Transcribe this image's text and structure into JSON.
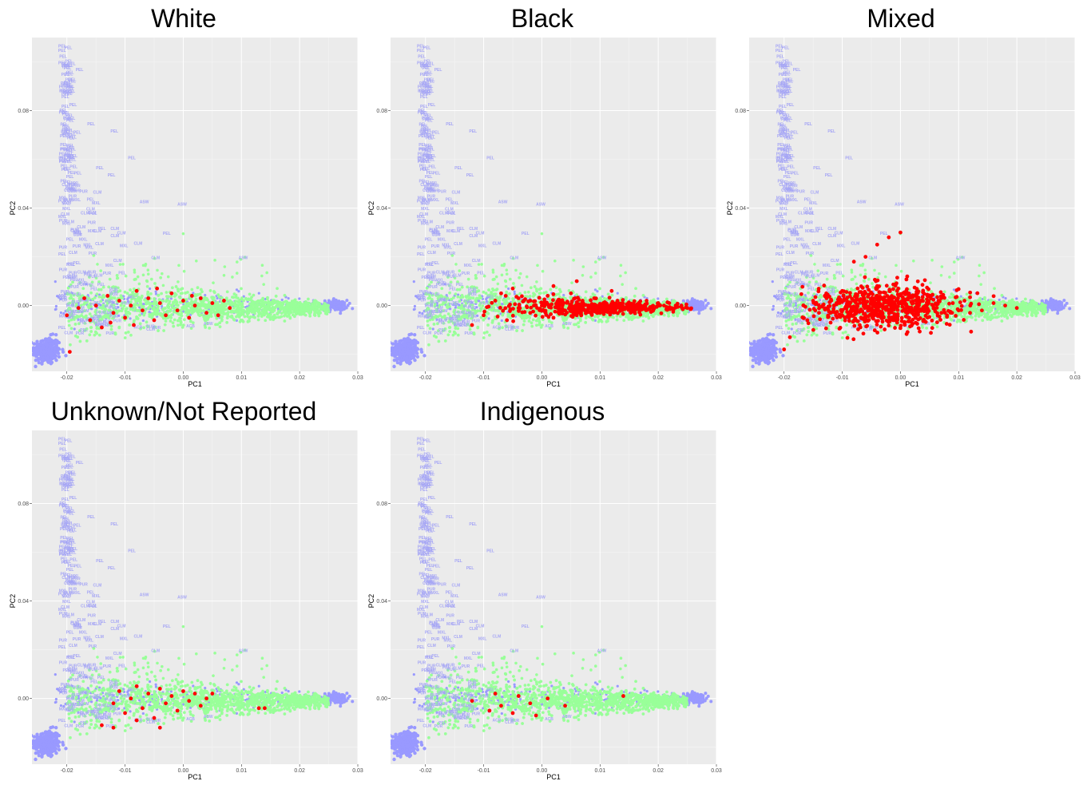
{
  "chart_data": [
    {
      "type": "scatter",
      "title": "White",
      "xlabel": "PC1",
      "ylabel": "PC2",
      "xlim": [
        -0.026,
        0.03
      ],
      "ylim": [
        -0.027,
        0.11
      ],
      "xticks": [
        "-0.02",
        "-0.01",
        "0.00",
        "0.01",
        "0.02",
        "0.03"
      ],
      "yticks": [
        "0.00",
        "0.04",
        "0.08"
      ],
      "grid": true,
      "colors": {
        "reference": "#9999ff",
        "cohort": "#99ff99",
        "highlight": "#ff0000",
        "panel_bg": "#ebebeb"
      },
      "reference_labels": [
        "PEL",
        "CLM",
        "MXL",
        "PUR",
        "ASW",
        "ACB"
      ],
      "highlight_points": [
        [
          -0.02,
          -0.004
        ],
        [
          -0.018,
          -0.001
        ],
        [
          -0.017,
          0.003
        ],
        [
          -0.016,
          -0.006
        ],
        [
          -0.015,
          0.0
        ],
        [
          -0.014,
          -0.009
        ],
        [
          -0.013,
          0.004
        ],
        [
          -0.012,
          -0.003
        ],
        [
          -0.011,
          0.002
        ],
        [
          -0.01,
          -0.005
        ],
        [
          -0.009,
          0.0
        ],
        [
          -0.008,
          0.006
        ],
        [
          -0.007,
          -0.002
        ],
        [
          -0.006,
          0.003
        ],
        [
          -0.005,
          -0.006
        ],
        [
          -0.004,
          0.001
        ],
        [
          -0.003,
          -0.004
        ],
        [
          -0.002,
          0.005
        ],
        [
          -0.001,
          -0.002
        ],
        [
          0.0,
          0.002
        ],
        [
          0.001,
          -0.005
        ],
        [
          0.002,
          0.0
        ],
        [
          0.003,
          0.003
        ],
        [
          0.004,
          -0.003
        ],
        [
          0.005,
          0.001
        ],
        [
          0.006,
          -0.004
        ],
        [
          0.007,
          0.002
        ],
        [
          0.008,
          -0.001
        ],
        [
          -0.0125,
          -0.007
        ],
        [
          -0.0085,
          -0.008
        ],
        [
          -0.0045,
          0.007
        ],
        [
          0.0015,
          0.004
        ],
        [
          -0.0195,
          -0.019
        ]
      ]
    },
    {
      "type": "scatter",
      "title": "Black",
      "xlabel": "PC1",
      "ylabel": "PC2",
      "xlim": [
        -0.026,
        0.03
      ],
      "ylim": [
        -0.027,
        0.11
      ],
      "xticks": [
        "-0.02",
        "-0.01",
        "0.00",
        "0.01",
        "0.02",
        "0.03"
      ],
      "yticks": [
        "0.00",
        "0.04",
        "0.08"
      ],
      "grid": true,
      "colors": {
        "reference": "#9999ff",
        "cohort": "#99ff99",
        "highlight": "#ff0000",
        "panel_bg": "#ebebeb"
      },
      "reference_labels": [
        "PEL",
        "CLM",
        "MXL",
        "PUR",
        "ASW",
        "ACB"
      ],
      "highlight_points": [
        [
          -0.01,
          -0.004
        ],
        [
          -0.008,
          0.002
        ],
        [
          -0.006,
          -0.006
        ],
        [
          -0.004,
          0.003
        ],
        [
          -0.002,
          -0.003
        ],
        [
          0.0,
          0.0
        ],
        [
          0.001,
          0.004
        ],
        [
          0.002,
          -0.005
        ],
        [
          0.003,
          0.001
        ],
        [
          0.004,
          -0.002
        ],
        [
          0.005,
          0.005
        ],
        [
          0.006,
          -0.004
        ],
        [
          0.007,
          0.002
        ],
        [
          0.008,
          -0.001
        ],
        [
          0.009,
          0.003
        ],
        [
          0.01,
          -0.003
        ],
        [
          0.011,
          0.001
        ],
        [
          0.012,
          -0.002
        ],
        [
          0.013,
          0.002
        ],
        [
          0.014,
          -0.001
        ],
        [
          0.015,
          0.001
        ],
        [
          0.016,
          -0.002
        ],
        [
          0.017,
          0.0
        ],
        [
          0.018,
          0.002
        ],
        [
          0.019,
          -0.001
        ],
        [
          0.02,
          0.001
        ],
        [
          0.021,
          0.0
        ],
        [
          0.022,
          -0.001
        ],
        [
          0.023,
          0.0
        ],
        [
          0.024,
          0.0
        ],
        [
          0.025,
          -0.001
        ],
        [
          -0.005,
          0.007
        ],
        [
          0.002,
          0.008
        ],
        [
          0.006,
          0.01
        ],
        [
          0.012,
          0.006
        ],
        [
          -0.012,
          -0.008
        ],
        [
          -0.007,
          0.005
        ]
      ]
    },
    {
      "type": "scatter",
      "title": "Mixed",
      "xlabel": "PC1",
      "ylabel": "PC2",
      "xlim": [
        -0.026,
        0.03
      ],
      "ylim": [
        -0.027,
        0.11
      ],
      "xticks": [
        "-0.02",
        "-0.01",
        "0.00",
        "0.01",
        "0.02",
        "0.03"
      ],
      "yticks": [
        "0.00",
        "0.04",
        "0.08"
      ],
      "grid": true,
      "colors": {
        "reference": "#9999ff",
        "cohort": "#99ff99",
        "highlight": "#ff0000",
        "panel_bg": "#ebebeb"
      },
      "reference_labels": [
        "PEL",
        "CLM",
        "MXL",
        "PUR",
        "ASW",
        "ACB"
      ],
      "highlight_points": [
        [
          -0.016,
          -0.006
        ],
        [
          -0.015,
          0.002
        ],
        [
          -0.014,
          -0.003
        ],
        [
          -0.013,
          0.004
        ],
        [
          -0.012,
          -0.007
        ],
        [
          -0.011,
          0.001
        ],
        [
          -0.01,
          0.006
        ],
        [
          -0.009,
          -0.004
        ],
        [
          -0.008,
          0.002
        ],
        [
          -0.007,
          -0.008
        ],
        [
          -0.006,
          0.005
        ],
        [
          -0.005,
          -0.002
        ],
        [
          -0.004,
          0.008
        ],
        [
          -0.003,
          -0.005
        ],
        [
          -0.002,
          0.003
        ],
        [
          -0.001,
          -0.006
        ],
        [
          0.0,
          0.001
        ],
        [
          0.001,
          0.006
        ],
        [
          0.002,
          -0.003
        ],
        [
          0.003,
          0.002
        ],
        [
          0.004,
          -0.006
        ],
        [
          0.005,
          0.004
        ],
        [
          0.006,
          -0.001
        ],
        [
          0.007,
          0.003
        ],
        [
          0.008,
          -0.004
        ],
        [
          0.009,
          0.001
        ],
        [
          0.01,
          -0.002
        ],
        [
          0.011,
          0.002
        ],
        [
          0.012,
          0.0
        ],
        [
          0.014,
          -0.002
        ],
        [
          0.016,
          0.001
        ],
        [
          0.018,
          0.0
        ],
        [
          -0.004,
          0.025
        ],
        [
          -0.002,
          0.028
        ],
        [
          0.0,
          0.03
        ],
        [
          -0.006,
          0.02
        ],
        [
          -0.008,
          0.018
        ],
        [
          -0.02,
          -0.018
        ],
        [
          -0.019,
          -0.013
        ],
        [
          0.02,
          -0.001
        ]
      ]
    },
    {
      "type": "scatter",
      "title": "Unknown/Not Reported",
      "xlabel": "PC1",
      "ylabel": "PC2",
      "xlim": [
        -0.026,
        0.03
      ],
      "ylim": [
        -0.027,
        0.11
      ],
      "xticks": [
        "-0.02",
        "-0.01",
        "0.00",
        "0.01",
        "0.02",
        "0.03"
      ],
      "yticks": [
        "0.00",
        "0.04",
        "0.08"
      ],
      "grid": true,
      "colors": {
        "reference": "#9999ff",
        "cohort": "#99ff99",
        "highlight": "#ff0000",
        "panel_bg": "#ebebeb"
      },
      "reference_labels": [
        "PEL",
        "CLM",
        "MXL",
        "PUR",
        "ASW",
        "ACB"
      ],
      "highlight_points": [
        [
          -0.014,
          -0.011
        ],
        [
          -0.012,
          -0.002
        ],
        [
          -0.011,
          0.003
        ],
        [
          -0.01,
          -0.006
        ],
        [
          -0.009,
          0.0
        ],
        [
          -0.008,
          0.005
        ],
        [
          -0.007,
          -0.004
        ],
        [
          -0.006,
          0.002
        ],
        [
          -0.005,
          -0.008
        ],
        [
          -0.004,
          0.004
        ],
        [
          -0.003,
          -0.002
        ],
        [
          -0.002,
          0.001
        ],
        [
          -0.001,
          -0.005
        ],
        [
          0.0,
          0.003
        ],
        [
          0.001,
          -0.001
        ],
        [
          0.002,
          0.002
        ],
        [
          0.003,
          -0.003
        ],
        [
          0.004,
          0.0
        ],
        [
          0.005,
          0.002
        ],
        [
          0.013,
          -0.004
        ],
        [
          0.014,
          -0.004
        ],
        [
          -0.012,
          -0.012
        ],
        [
          -0.004,
          -0.012
        ],
        [
          -0.008,
          -0.009
        ]
      ]
    },
    {
      "type": "scatter",
      "title": "Indigenous",
      "xlabel": "PC1",
      "ylabel": "PC2",
      "xlim": [
        -0.026,
        0.03
      ],
      "ylim": [
        -0.027,
        0.11
      ],
      "xticks": [
        "-0.02",
        "-0.01",
        "0.00",
        "0.01",
        "0.02",
        "0.03"
      ],
      "yticks": [
        "0.00",
        "0.04",
        "0.08"
      ],
      "grid": true,
      "colors": {
        "reference": "#9999ff",
        "cohort": "#99ff99",
        "highlight": "#ff0000",
        "panel_bg": "#ebebeb"
      },
      "reference_labels": [
        "PEL",
        "CLM",
        "MXL",
        "PUR",
        "ASW",
        "ACB"
      ],
      "highlight_points": [
        [
          -0.012,
          -0.001
        ],
        [
          -0.009,
          -0.005
        ],
        [
          -0.008,
          0.002
        ],
        [
          -0.007,
          -0.003
        ],
        [
          -0.005,
          -0.006
        ],
        [
          -0.004,
          0.001
        ],
        [
          -0.002,
          -0.002
        ],
        [
          -0.001,
          -0.007
        ],
        [
          0.001,
          0.0
        ],
        [
          0.004,
          -0.003
        ],
        [
          0.014,
          0.001
        ]
      ]
    }
  ]
}
